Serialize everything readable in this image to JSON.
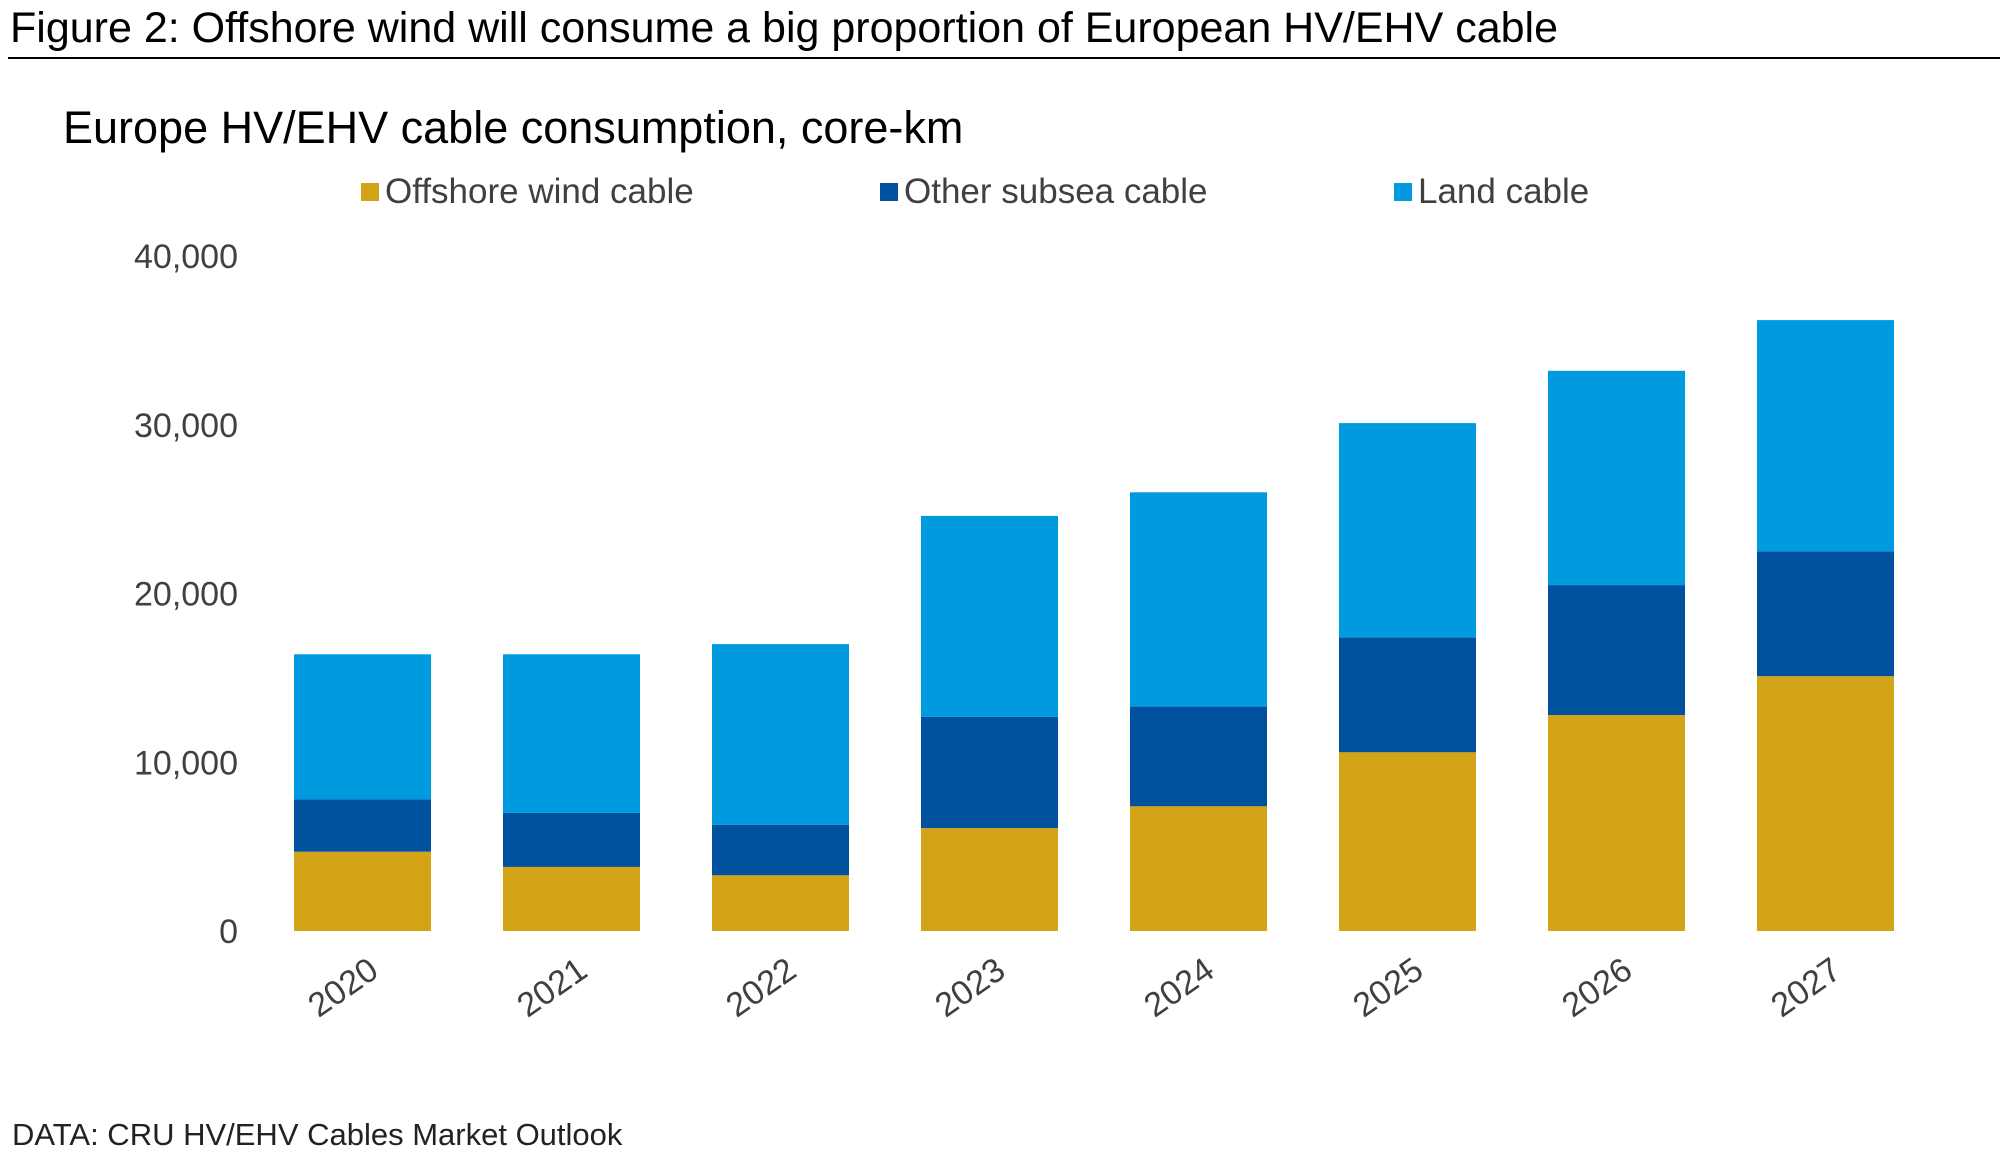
{
  "figure": {
    "title": "Figure 2: Offshore wind will consume a big proportion of European HV/EHV cable",
    "source": "DATA: CRU HV/EHV Cables Market Outlook"
  },
  "colors": {
    "offshore": "#D4A418",
    "subsea": "#00519E",
    "land": "#009ADE",
    "text": "#404040"
  },
  "chart_data": {
    "type": "bar",
    "stacked": true,
    "title": "Europe HV/EHV cable consumption, core-km",
    "xlabel": "",
    "ylabel": "",
    "categories": [
      "2020",
      "2021",
      "2022",
      "2023",
      "2024",
      "2025",
      "2026",
      "2027"
    ],
    "series": [
      {
        "name": "Offshore wind cable",
        "color": "#D4A418",
        "values": [
          4700,
          3800,
          3300,
          6100,
          7400,
          10600,
          12800,
          15100
        ]
      },
      {
        "name": "Other subsea cable",
        "color": "#00519E",
        "values": [
          3100,
          3200,
          3000,
          6600,
          5900,
          6800,
          7700,
          7400
        ]
      },
      {
        "name": "Land cable",
        "color": "#009ADE",
        "values": [
          8600,
          9400,
          10700,
          11900,
          12700,
          12700,
          12700,
          13700
        ]
      }
    ],
    "yticks": [
      "0",
      "10,000",
      "20,000",
      "30,000",
      "40,000"
    ],
    "ylim": [
      0,
      40000
    ],
    "legend_position": "top"
  }
}
